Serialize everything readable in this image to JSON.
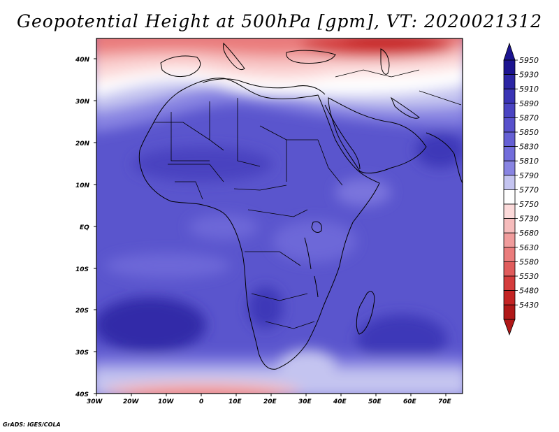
{
  "title": "Geopotential Height at 500hPa [gpm], VT: 2020021312",
  "credit": "GrADS: IGES/COLA",
  "map": {
    "region": "Africa",
    "lon_labels": [
      "30W",
      "20W",
      "10W",
      "0",
      "10E",
      "20E",
      "30E",
      "40E",
      "50E",
      "60E",
      "70E"
    ],
    "lat_labels": [
      "40N",
      "30N",
      "20N",
      "10N",
      "EQ",
      "10S",
      "20S",
      "30S",
      "40S"
    ]
  },
  "colorbar": {
    "levels": [
      "5950",
      "5930",
      "5910",
      "5890",
      "5870",
      "5850",
      "5830",
      "5810",
      "5790",
      "5770",
      "5750",
      "5730",
      "5680",
      "5630",
      "5580",
      "5530",
      "5480",
      "5430"
    ],
    "colors": [
      "#1c1490",
      "#2c26a4",
      "#3a34b5",
      "#4a44c2",
      "#5851cc",
      "#6560d4",
      "#726ddb",
      "#8884e2",
      "#c4c4f0",
      "#ffffff",
      "#fcdada",
      "#f6bcbc",
      "#f09c9c",
      "#ea7c7c",
      "#e05c5c",
      "#d43c3c",
      "#c42424",
      "#b01818"
    ]
  }
}
